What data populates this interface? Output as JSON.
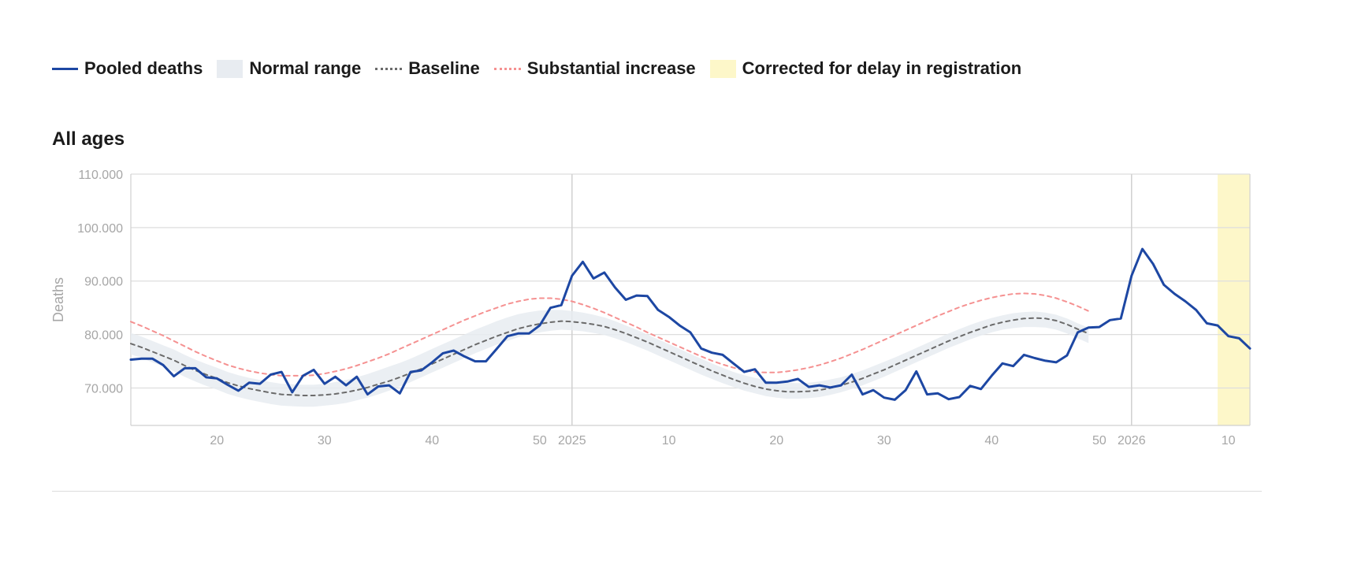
{
  "legend": {
    "pooled": "Pooled deaths",
    "normal": "Normal range",
    "baseline": "Baseline",
    "substantial": "Substantial increase",
    "corrected": "Corrected for delay in registration"
  },
  "colors": {
    "pooled": "#1d47a3",
    "normal": "#e8ecf1",
    "baseline": "#6b6b6b",
    "substantial": "#f59191",
    "corrected": "#fdf7c9",
    "grid": "#dedede",
    "axis": "#d0d0d0",
    "tick": "#a6a6a6"
  },
  "panel_title": "All ages",
  "chart_data": {
    "type": "line",
    "title": "All ages",
    "ylabel": "Deaths",
    "xlabel": "",
    "ylim": [
      63000,
      110000
    ],
    "y_ticks": [
      70000,
      80000,
      90000,
      100000,
      110000
    ],
    "y_tick_labels": [
      "70.000",
      "80.000",
      "90.000",
      "100.000",
      "110.000"
    ],
    "x_range": [
      0,
      104
    ],
    "x_ticks": [
      {
        "x": 8,
        "label": "20"
      },
      {
        "x": 18,
        "label": "30"
      },
      {
        "x": 28,
        "label": "40"
      },
      {
        "x": 38,
        "label": "50"
      },
      {
        "x": 41,
        "label": "2025"
      },
      {
        "x": 50,
        "label": "10"
      },
      {
        "x": 60,
        "label": "20"
      },
      {
        "x": 70,
        "label": "30"
      },
      {
        "x": 80,
        "label": "40"
      },
      {
        "x": 90,
        "label": "50"
      },
      {
        "x": 93,
        "label": "2026"
      },
      {
        "x": 102,
        "label": "10"
      }
    ],
    "year_lines": [
      41,
      93
    ],
    "corrected_range": [
      101,
      104
    ],
    "series": [
      {
        "name": "Pooled deaths",
        "values": [
          75300,
          75500,
          75500,
          74300,
          72200,
          73700,
          73700,
          72000,
          71800,
          70600,
          69500,
          71000,
          70800,
          72500,
          73000,
          69200,
          72300,
          73400,
          70800,
          72100,
          70500,
          72100,
          68800,
          70300,
          70500,
          69000,
          73000,
          73300,
          74800,
          76500,
          77000,
          75900,
          75000,
          75000,
          77300,
          79700,
          80200,
          80200,
          81700,
          85000,
          85500,
          91000,
          93600,
          90500,
          91600,
          88800,
          86500,
          87300,
          87200,
          84600,
          83300,
          81700,
          80400,
          77400,
          76600,
          76200,
          74600,
          73000,
          73500,
          71000,
          71000,
          71200,
          71700,
          70200,
          70500,
          70100,
          70500,
          72500,
          68800,
          69600,
          68200,
          67800,
          69600,
          73100,
          68800,
          69000,
          67900,
          68300,
          70400,
          69800,
          72300,
          74600,
          74100,
          76200,
          75600,
          75100,
          74800,
          76100,
          80400,
          81300,
          81400,
          82700,
          83000,
          91000,
          96000,
          93200,
          89300,
          87600,
          86200,
          84600,
          82100,
          81700,
          79700,
          79300,
          77400
        ]
      },
      {
        "name": "Baseline",
        "values": [
          78300,
          77600,
          76800,
          76000,
          75200,
          74200,
          73300,
          72500,
          71800,
          71000,
          70400,
          69900,
          69500,
          69100,
          68800,
          68700,
          68600,
          68600,
          68700,
          68900,
          69200,
          69600,
          70100,
          70700,
          71300,
          72000,
          72800,
          73600,
          74500,
          75400,
          76300,
          77200,
          78100,
          78900,
          79700,
          80400,
          81100,
          81600,
          82000,
          82300,
          82500,
          82400,
          82200,
          81900,
          81500,
          80900,
          80200,
          79400,
          78600,
          77700,
          76800,
          75900,
          75000,
          74100,
          73200,
          72400,
          71600,
          70900,
          70300,
          69800,
          69500,
          69300,
          69300,
          69400,
          69600,
          70000,
          70500,
          71100,
          71800,
          72600,
          73400,
          74300,
          75200,
          76100,
          77000,
          77900,
          78800,
          79600,
          80400,
          81100,
          81800,
          82300,
          82700,
          83000,
          83100,
          83000,
          82600,
          81900,
          81000,
          80200
        ]
      },
      {
        "name": "Substantial increase",
        "values": [
          82400,
          81600,
          80700,
          79800,
          78800,
          77800,
          76800,
          75900,
          75100,
          74300,
          73700,
          73200,
          72800,
          72500,
          72300,
          72300,
          72300,
          72400,
          72700,
          73100,
          73600,
          74200,
          74900,
          75600,
          76400,
          77300,
          78200,
          79100,
          80000,
          80900,
          81800,
          82700,
          83500,
          84300,
          85000,
          85700,
          86200,
          86600,
          86800,
          86800,
          86600,
          86200,
          85600,
          84900,
          84100,
          83200,
          82300,
          81400,
          80400,
          79500,
          78600,
          77700,
          76800,
          75900,
          75100,
          74400,
          73800,
          73300,
          73000,
          72900,
          72900,
          73100,
          73400,
          73800,
          74300,
          74900,
          75600,
          76400,
          77200,
          78100,
          79000,
          79900,
          80800,
          81700,
          82600,
          83500,
          84300,
          85100,
          85800,
          86400,
          86900,
          87300,
          87600,
          87700,
          87600,
          87300,
          86800,
          86100,
          85300,
          84400
        ]
      }
    ],
    "normal_range": {
      "lower": [
        76300,
        75600,
        74800,
        74000,
        73100,
        72100,
        71200,
        70400,
        69700,
        68900,
        68300,
        67800,
        67400,
        67000,
        66700,
        66600,
        66500,
        66500,
        66700,
        66900,
        67200,
        67700,
        68200,
        68800,
        69500,
        70300,
        71100,
        72000,
        72900,
        73800,
        74700,
        75600,
        76500,
        77300,
        78100,
        78800,
        79500,
        80000,
        80400,
        80700,
        80900,
        80800,
        80600,
        80300,
        79900,
        79300,
        78600,
        77800,
        77000,
        76100,
        75200,
        74300,
        73400,
        72500,
        71700,
        70900,
        70200,
        69500,
        69000,
        68500,
        68200,
        68000,
        68000,
        68100,
        68300,
        68700,
        69200,
        69800,
        70500,
        71300,
        72100,
        73000,
        73900,
        74800,
        75700,
        76600,
        77500,
        78300,
        79100,
        79800,
        80400,
        80900,
        81200,
        81400,
        81400,
        81300,
        80900,
        80200,
        79300,
        78400
      ],
      "upper": [
        80300,
        79600,
        78800,
        78000,
        77200,
        76200,
        75300,
        74500,
        73800,
        73000,
        72400,
        71900,
        71500,
        71100,
        70800,
        70700,
        70600,
        70600,
        70800,
        71100,
        71500,
        72000,
        72600,
        73300,
        74000,
        74700,
        75500,
        76400,
        77300,
        78200,
        79100,
        80000,
        80900,
        81700,
        82500,
        83200,
        83800,
        84200,
        84500,
        84600,
        84600,
        84400,
        84100,
        83700,
        83200,
        82500,
        81700,
        80900,
        80000,
        79100,
        78200,
        77300,
        76400,
        75500,
        74600,
        73800,
        73000,
        72400,
        71900,
        71500,
        71200,
        71000,
        70900,
        71000,
        71200,
        71600,
        72000,
        72600,
        73300,
        74100,
        74900,
        75700,
        76600,
        77500,
        78400,
        79300,
        80200,
        81000,
        81800,
        82500,
        83100,
        83600,
        84000,
        84200,
        84300,
        84100,
        83700,
        83000,
        82100,
        81300
      ]
    }
  }
}
